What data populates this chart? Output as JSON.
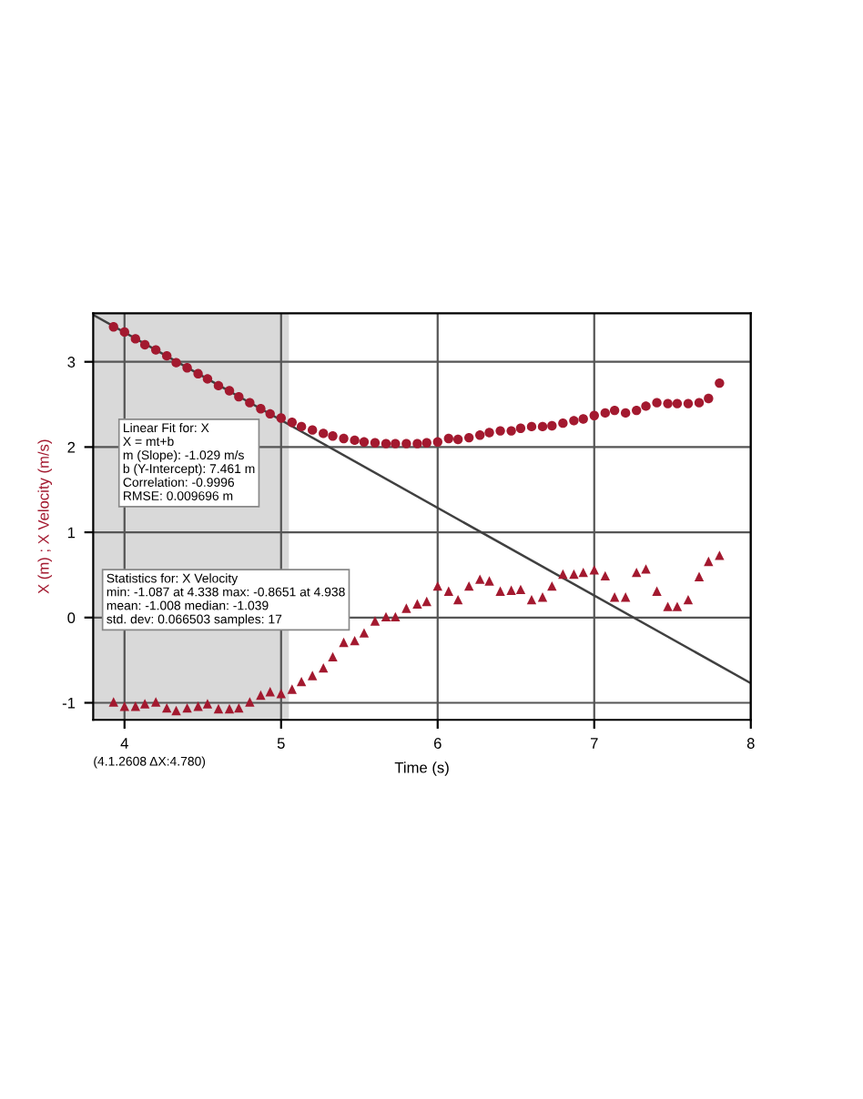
{
  "chart_data": {
    "type": "scatter",
    "xlabel": "Time (s)",
    "ylabel": "X (m) ; X Velocity (m/s)",
    "xlim": [
      3.8,
      8
    ],
    "ylim": [
      -1.2,
      3.57
    ],
    "xticks": [
      4,
      5,
      6,
      7,
      8
    ],
    "yticks": [
      -1,
      0,
      1,
      2,
      3
    ],
    "grid": true,
    "bands": [
      {
        "axis": "x",
        "from": 3.8,
        "to": 5.05,
        "color": "#d9d9d9"
      }
    ],
    "annotations": [
      "Linear Fit for: X\nX = mt+b\nm (Slope): -1.029 m/s\nb (Y-Intercept): 7.461 m\nCorrelation: -0.9996\nRMSE: 0.009696 m",
      "Statistics for: X Velocity\nmin: -1.087 at 4.338 max: -0.8651 at 4.938\nmean: -1.008 median: -1.039\nstd. dev: 0.066503 samples: 17",
      "(4.1.2608 ΔX:4.780)"
    ],
    "series": [
      {
        "marker": "circle",
        "color": "#a3192f",
        "x": [
          3.93,
          4.0,
          4.07,
          4.13,
          4.2,
          4.27,
          4.33,
          4.4,
          4.47,
          4.53,
          4.6,
          4.67,
          4.73,
          4.8,
          4.87,
          4.93,
          5.0,
          5.07,
          5.13,
          5.2,
          5.27,
          5.33,
          5.4,
          5.47,
          5.53,
          5.6,
          5.67,
          5.73,
          5.8,
          5.87,
          5.93,
          6.0,
          6.07,
          6.13,
          6.2,
          6.27,
          6.33,
          6.4,
          6.47,
          6.53,
          6.6,
          6.67,
          6.73,
          6.8,
          6.87,
          6.93,
          7.0,
          7.07,
          7.13,
          7.2,
          7.27,
          7.33,
          7.4,
          7.47,
          7.53,
          7.6,
          7.67,
          7.73,
          7.8
        ],
        "values": [
          3.41,
          3.35,
          3.27,
          3.2,
          3.14,
          3.07,
          2.99,
          2.93,
          2.86,
          2.8,
          2.72,
          2.66,
          2.59,
          2.52,
          2.45,
          2.39,
          2.34,
          2.29,
          2.24,
          2.2,
          2.16,
          2.13,
          2.1,
          2.08,
          2.06,
          2.05,
          2.04,
          2.04,
          2.04,
          2.04,
          2.05,
          2.06,
          2.1,
          2.09,
          2.11,
          2.14,
          2.17,
          2.19,
          2.19,
          2.22,
          2.24,
          2.24,
          2.25,
          2.28,
          2.31,
          2.33,
          2.37,
          2.4,
          2.43,
          2.4,
          2.43,
          2.48,
          2.52,
          2.51,
          2.51,
          2.51,
          2.52,
          2.57,
          2.75
        ]
      },
      {
        "marker": "triangle",
        "color": "#a3192f",
        "x": [
          3.93,
          4.0,
          4.07,
          4.13,
          4.2,
          4.27,
          4.33,
          4.4,
          4.47,
          4.53,
          4.6,
          4.67,
          4.73,
          4.8,
          4.87,
          4.93,
          5.0,
          5.07,
          5.13,
          5.2,
          5.27,
          5.33,
          5.4,
          5.47,
          5.53,
          5.6,
          5.67,
          5.73,
          5.8,
          5.87,
          5.93,
          6.0,
          6.07,
          6.13,
          6.2,
          6.27,
          6.33,
          6.4,
          6.47,
          6.53,
          6.6,
          6.67,
          6.73,
          6.8,
          6.87,
          6.93,
          7.0,
          7.07,
          7.13,
          7.2,
          7.27,
          7.33,
          7.4,
          7.47,
          7.53,
          7.6,
          7.67,
          7.73,
          7.8
        ],
        "values": [
          -0.99,
          -1.04,
          -1.04,
          -1.01,
          -0.99,
          -1.06,
          -1.09,
          -1.06,
          -1.04,
          -1.01,
          -1.07,
          -1.07,
          -1.06,
          -0.99,
          -0.91,
          -0.87,
          -0.89,
          -0.84,
          -0.75,
          -0.68,
          -0.59,
          -0.46,
          -0.29,
          -0.27,
          -0.18,
          -0.04,
          0.01,
          0.01,
          0.11,
          0.16,
          0.19,
          0.37,
          0.31,
          0.21,
          0.37,
          0.45,
          0.43,
          0.31,
          0.32,
          0.33,
          0.21,
          0.24,
          0.37,
          0.51,
          0.51,
          0.53,
          0.56,
          0.49,
          0.24,
          0.24,
          0.53,
          0.57,
          0.31,
          0.13,
          0.13,
          0.21,
          0.48,
          0.66,
          0.73
        ]
      },
      {
        "type": "line",
        "marker": "none",
        "color": "#404040",
        "x": [
          3.8,
          8
        ],
        "values": [
          3.55,
          -0.77
        ]
      }
    ]
  }
}
